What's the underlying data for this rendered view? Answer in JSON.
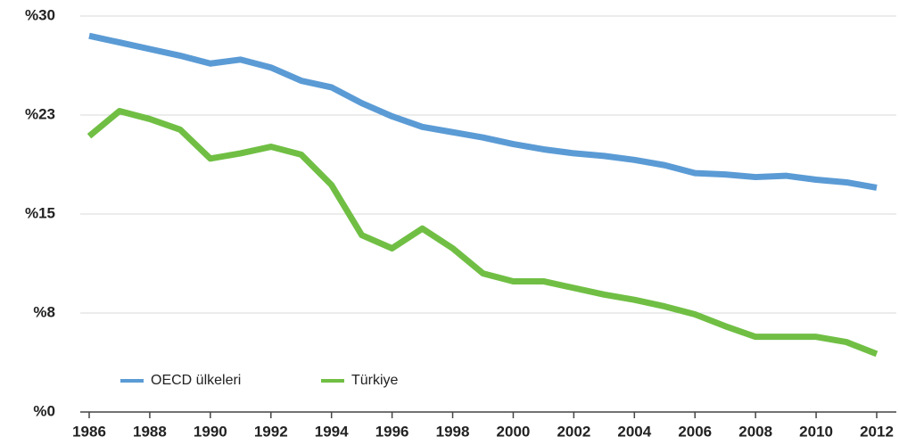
{
  "chart_data": {
    "type": "line",
    "x": [
      1986,
      1987,
      1988,
      1989,
      1990,
      1991,
      1992,
      1993,
      1994,
      1995,
      1996,
      1997,
      1998,
      1999,
      2000,
      2001,
      2002,
      2003,
      2004,
      2005,
      2006,
      2007,
      2008,
      2009,
      2010,
      2011,
      2012
    ],
    "series": [
      {
        "name": "OECD ülkeleri",
        "color": "#5b9bd5",
        "values": [
          28.5,
          28.0,
          27.5,
          27.0,
          26.4,
          26.7,
          26.1,
          25.1,
          24.6,
          23.4,
          22.4,
          21.6,
          21.2,
          20.8,
          20.3,
          19.9,
          19.6,
          19.4,
          19.1,
          18.7,
          18.1,
          18.0,
          17.8,
          17.9,
          17.6,
          17.4,
          17.0
        ]
      },
      {
        "name": "Türkiye",
        "color": "#70bf44",
        "values": [
          20.9,
          22.8,
          22.2,
          21.4,
          19.2,
          19.6,
          20.1,
          19.5,
          17.2,
          13.4,
          12.4,
          13.9,
          12.4,
          10.5,
          9.9,
          9.9,
          9.4,
          8.9,
          8.5,
          8.0,
          7.4,
          6.5,
          5.7,
          5.7,
          5.7,
          5.3,
          4.4
        ]
      }
    ],
    "xlim": [
      1986,
      2012
    ],
    "xticks": [
      1986,
      1988,
      1990,
      1992,
      1994,
      1996,
      1998,
      2000,
      2002,
      2004,
      2006,
      2008,
      2010,
      2012
    ],
    "ylim": [
      0,
      30
    ],
    "yticks": [
      {
        "value": 0,
        "label": "%0"
      },
      {
        "value": 7.5,
        "label": "%8"
      },
      {
        "value": 15,
        "label": "%15"
      },
      {
        "value": 22.5,
        "label": "%23"
      },
      {
        "value": 30,
        "label": "%30"
      }
    ],
    "grid": true,
    "legend": "bottom-left"
  }
}
